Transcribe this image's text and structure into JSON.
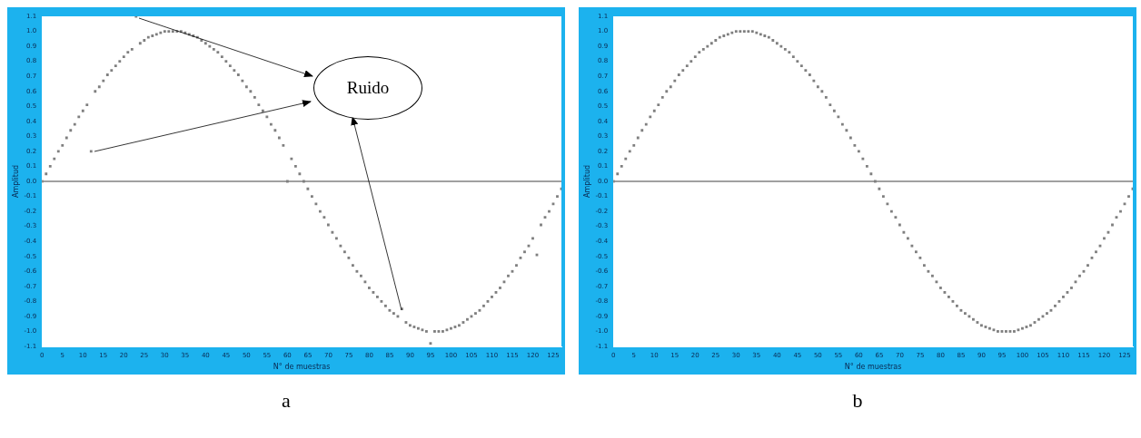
{
  "chart_data": [
    {
      "type": "scatter",
      "title": "a",
      "xlabel": "N° de muestras",
      "ylabel": "Amplitud",
      "xlim": [
        0,
        127
      ],
      "xticks": [
        0,
        5,
        10,
        15,
        20,
        25,
        30,
        35,
        40,
        45,
        50,
        55,
        60,
        65,
        70,
        75,
        80,
        85,
        90,
        95,
        100,
        105,
        110,
        115,
        120,
        125
      ],
      "ylim": [
        -1.1,
        1.1
      ],
      "yticks": [
        -1.1,
        {
          "value": -1,
          "label": "-1.0"
        },
        -0.9,
        -0.8,
        -0.7,
        -0.6,
        -0.5,
        -0.4,
        -0.3,
        -0.2,
        -0.1,
        {
          "value": 0,
          "label": "0.0"
        },
        0.1,
        0.2,
        0.3,
        0.4,
        0.5,
        0.6,
        0.7,
        0.8,
        0.9,
        {
          "value": 1,
          "label": "1.0"
        },
        1.1
      ],
      "grid": false,
      "marker": "square",
      "ref_lines": [
        {
          "axis": "y",
          "value": 0,
          "color": "#808080"
        }
      ],
      "annotations": [
        "Ruido"
      ],
      "x": [
        0,
        1,
        2,
        3,
        4,
        5,
        6,
        7,
        8,
        9,
        10,
        11,
        12,
        13,
        14,
        15,
        16,
        17,
        18,
        19,
        20,
        21,
        22,
        23,
        24,
        25,
        26,
        27,
        28,
        29,
        30,
        31,
        32,
        33,
        34,
        35,
        36,
        37,
        38,
        39,
        40,
        41,
        42,
        43,
        44,
        45,
        46,
        47,
        48,
        49,
        50,
        51,
        52,
        53,
        54,
        55,
        56,
        57,
        58,
        59,
        60,
        61,
        62,
        63,
        64,
        65,
        66,
        67,
        68,
        69,
        70,
        71,
        72,
        73,
        74,
        75,
        76,
        77,
        78,
        79,
        80,
        81,
        82,
        83,
        84,
        85,
        86,
        87,
        88,
        89,
        90,
        91,
        92,
        93,
        94,
        95,
        96,
        97,
        98,
        99,
        100,
        101,
        102,
        103,
        104,
        105,
        106,
        107,
        108,
        109,
        110,
        111,
        112,
        113,
        114,
        115,
        116,
        117,
        118,
        119,
        120,
        121,
        122,
        123,
        124,
        125,
        126,
        127
      ],
      "series": [
        {
          "color": "#7f7f7f",
          "values": [
            0,
            0.05,
            0.1,
            0.15,
            0.2,
            0.24,
            0.29,
            0.34,
            0.38,
            0.43,
            0.47,
            0.51,
            0.2,
            0.6,
            0.63,
            0.67,
            0.71,
            0.74,
            0.77,
            0.8,
            0.83,
            0.86,
            0.88,
            1.1,
            0.92,
            0.94,
            0.96,
            0.97,
            0.98,
            0.99,
            1,
            1,
            1,
            1,
            1,
            0.99,
            0.98,
            0.97,
            0.96,
            0.94,
            0.92,
            0.9,
            0.88,
            0.86,
            0.83,
            0.8,
            0.77,
            0.74,
            0.71,
            0.67,
            0.63,
            0.6,
            0.56,
            0.51,
            0.47,
            0.43,
            0.38,
            0.34,
            0.29,
            0.24,
            0,
            0.15,
            0.1,
            0.05,
            0,
            -0.05,
            -0.1,
            -0.15,
            -0.2,
            -0.24,
            -0.29,
            -0.34,
            -0.38,
            -0.43,
            -0.47,
            -0.51,
            -0.56,
            -0.6,
            -0.63,
            -0.67,
            -0.71,
            -0.74,
            -0.77,
            -0.8,
            -0.83,
            -0.86,
            -0.88,
            -0.9,
            -0.85,
            -0.94,
            -0.96,
            -0.97,
            -0.98,
            -0.99,
            -1,
            -1.08,
            -1,
            -1,
            -1,
            -0.99,
            -0.98,
            -0.97,
            -0.96,
            -0.94,
            -0.92,
            -0.9,
            -0.88,
            -0.86,
            -0.83,
            -0.8,
            -0.77,
            -0.74,
            -0.71,
            -0.67,
            -0.63,
            -0.6,
            -0.56,
            -0.51,
            -0.47,
            -0.43,
            -0.38,
            -0.49,
            -0.29,
            -0.24,
            -0.2,
            -0.15,
            -0.1,
            -0.05
          ]
        }
      ]
    },
    {
      "type": "scatter",
      "title": "b",
      "xlabel": "N° de muestras",
      "ylabel": "Amplitud",
      "xlim": [
        0,
        127
      ],
      "xticks": [
        0,
        5,
        10,
        15,
        20,
        25,
        30,
        35,
        40,
        45,
        50,
        55,
        60,
        65,
        70,
        75,
        80,
        85,
        90,
        95,
        100,
        105,
        110,
        115,
        120,
        125
      ],
      "ylim": [
        -1.1,
        1.1
      ],
      "yticks": [
        -1.1,
        {
          "value": -1,
          "label": "-1.0"
        },
        -0.9,
        -0.8,
        -0.7,
        -0.6,
        -0.5,
        -0.4,
        -0.3,
        -0.2,
        -0.1,
        {
          "value": 0,
          "label": "0.0"
        },
        0.1,
        0.2,
        0.3,
        0.4,
        0.5,
        0.6,
        0.7,
        0.8,
        0.9,
        {
          "value": 1,
          "label": "1.0"
        },
        1.1
      ],
      "grid": false,
      "marker": "square",
      "ref_lines": [
        {
          "axis": "y",
          "value": 0,
          "color": "#808080"
        }
      ],
      "x": [
        0,
        1,
        2,
        3,
        4,
        5,
        6,
        7,
        8,
        9,
        10,
        11,
        12,
        13,
        14,
        15,
        16,
        17,
        18,
        19,
        20,
        21,
        22,
        23,
        24,
        25,
        26,
        27,
        28,
        29,
        30,
        31,
        32,
        33,
        34,
        35,
        36,
        37,
        38,
        39,
        40,
        41,
        42,
        43,
        44,
        45,
        46,
        47,
        48,
        49,
        50,
        51,
        52,
        53,
        54,
        55,
        56,
        57,
        58,
        59,
        60,
        61,
        62,
        63,
        64,
        65,
        66,
        67,
        68,
        69,
        70,
        71,
        72,
        73,
        74,
        75,
        76,
        77,
        78,
        79,
        80,
        81,
        82,
        83,
        84,
        85,
        86,
        87,
        88,
        89,
        90,
        91,
        92,
        93,
        94,
        95,
        96,
        97,
        98,
        99,
        100,
        101,
        102,
        103,
        104,
        105,
        106,
        107,
        108,
        109,
        110,
        111,
        112,
        113,
        114,
        115,
        116,
        117,
        118,
        119,
        120,
        121,
        122,
        123,
        124,
        125,
        126,
        127
      ],
      "series": [
        {
          "color": "#7f7f7f",
          "values": [
            0,
            0.05,
            0.1,
            0.15,
            0.2,
            0.24,
            0.29,
            0.34,
            0.38,
            0.43,
            0.47,
            0.51,
            0.56,
            0.6,
            0.63,
            0.67,
            0.71,
            0.74,
            0.77,
            0.8,
            0.83,
            0.86,
            0.88,
            0.9,
            0.92,
            0.94,
            0.96,
            0.97,
            0.98,
            0.99,
            1,
            1,
            1,
            1,
            1,
            0.99,
            0.98,
            0.97,
            0.96,
            0.94,
            0.92,
            0.9,
            0.88,
            0.86,
            0.83,
            0.8,
            0.77,
            0.74,
            0.71,
            0.67,
            0.63,
            0.6,
            0.56,
            0.51,
            0.47,
            0.43,
            0.38,
            0.34,
            0.29,
            0.24,
            0.2,
            0.15,
            0.1,
            0.05,
            0,
            -0.05,
            -0.1,
            -0.15,
            -0.2,
            -0.24,
            -0.29,
            -0.34,
            -0.38,
            -0.43,
            -0.47,
            -0.51,
            -0.56,
            -0.6,
            -0.63,
            -0.67,
            -0.71,
            -0.74,
            -0.77,
            -0.8,
            -0.83,
            -0.86,
            -0.88,
            -0.9,
            -0.92,
            -0.94,
            -0.96,
            -0.97,
            -0.98,
            -0.99,
            -1,
            -1,
            -1,
            -1,
            -1,
            -0.99,
            -0.98,
            -0.97,
            -0.96,
            -0.94,
            -0.92,
            -0.9,
            -0.88,
            -0.86,
            -0.83,
            -0.8,
            -0.77,
            -0.74,
            -0.71,
            -0.67,
            -0.63,
            -0.6,
            -0.56,
            -0.51,
            -0.47,
            -0.43,
            -0.38,
            -0.34,
            -0.29,
            -0.24,
            -0.2,
            -0.15,
            -0.1,
            -0.05
          ]
        }
      ]
    }
  ]
}
